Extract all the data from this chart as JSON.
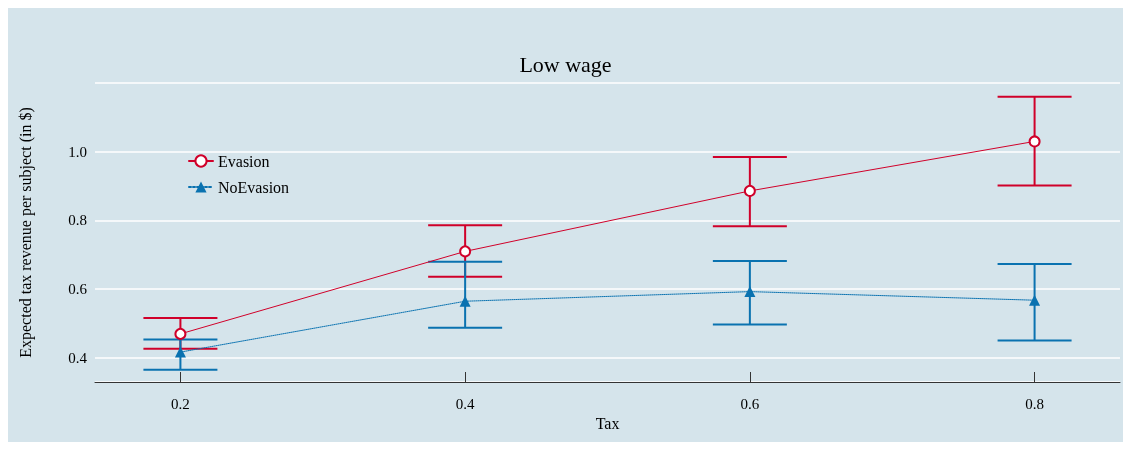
{
  "chart_data": {
    "type": "line",
    "title": "Low wage",
    "xlabel": "Tax",
    "ylabel": "Expected tax revenue per subject (in $)",
    "x": [
      0.2,
      0.4,
      0.6,
      0.8
    ],
    "xlim": [
      0.14,
      0.86
    ],
    "xticks": [
      0.2,
      0.4,
      0.6,
      0.8
    ],
    "ylim": [
      0.33,
      1.2
    ],
    "yticks": [
      0.4,
      0.6,
      0.8,
      {
        "value": 1,
        "label": "1.0"
      }
    ],
    "grid": "y",
    "legend": "top left",
    "series": [
      {
        "name": "Evasion",
        "color": "#d0002a",
        "marker": "circle",
        "line_style": "solid",
        "values": [
          0.47,
          0.71,
          0.886,
          1.03
        ],
        "errors": [
          [
            0.427,
            0.516
          ],
          [
            0.636,
            0.786
          ],
          [
            0.783,
            0.985
          ],
          [
            0.902,
            1.16
          ]
        ]
      },
      {
        "name": "NoEvasion",
        "color": "#0a72b0",
        "marker": "triangle",
        "line_style": "dotted",
        "values": [
          0.417,
          0.565,
          0.593,
          0.568
        ],
        "errors": [
          [
            0.366,
            0.454
          ],
          [
            0.488,
            0.68
          ],
          [
            0.497,
            0.682
          ],
          [
            0.451,
            0.673
          ]
        ]
      }
    ]
  }
}
